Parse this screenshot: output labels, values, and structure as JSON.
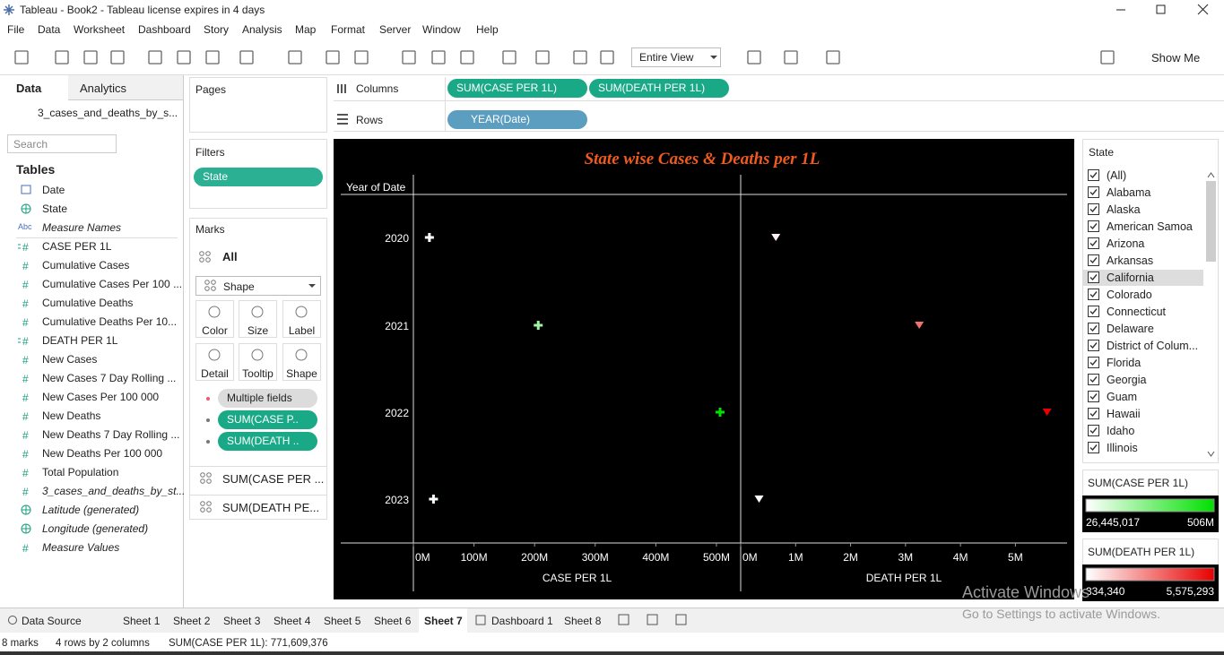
{
  "window": {
    "title": "Tableau - Book2 - Tableau license expires in 4 days"
  },
  "menu": [
    "File",
    "Data",
    "Worksheet",
    "Dashboard",
    "Story",
    "Analysis",
    "Map",
    "Format",
    "Server",
    "Window",
    "Help"
  ],
  "toolbar": {
    "fit": "Entire View",
    "show_me": "Show Me"
  },
  "data_pane": {
    "tabs": [
      "Data",
      "Analytics"
    ],
    "source": "3_cases_and_deaths_by_s...",
    "search": "Search",
    "tables": "Tables",
    "fields": [
      {
        "kind": "date",
        "name": "Date"
      },
      {
        "kind": "geo",
        "name": "State"
      },
      {
        "icon": "Abc",
        "name": "Measure Names",
        "italic": true
      },
      {
        "icon": "#",
        "kind": "calc",
        "name": "CASE PER 1L"
      },
      {
        "icon": "#",
        "name": "Cumulative Cases"
      },
      {
        "icon": "#",
        "name": "Cumulative Cases Per 100 ..."
      },
      {
        "icon": "#",
        "name": "Cumulative Deaths"
      },
      {
        "icon": "#",
        "name": "Cumulative Deaths Per 10..."
      },
      {
        "icon": "#",
        "kind": "calc",
        "name": "DEATH PER 1L"
      },
      {
        "icon": "#",
        "name": "New Cases"
      },
      {
        "icon": "#",
        "name": "New Cases 7 Day Rolling ..."
      },
      {
        "icon": "#",
        "name": "New Cases Per 100 000"
      },
      {
        "icon": "#",
        "name": "New Deaths"
      },
      {
        "icon": "#",
        "name": "New Deaths 7 Day Rolling ..."
      },
      {
        "icon": "#",
        "name": "New Deaths Per 100 000"
      },
      {
        "icon": "#",
        "name": "Total Population"
      },
      {
        "icon": "#",
        "name": "3_cases_and_deaths_by_st...",
        "italic": true
      },
      {
        "kind": "geo",
        "name": "Latitude (generated)",
        "italic": true
      },
      {
        "kind": "geo",
        "name": "Longitude (generated)",
        "italic": true
      },
      {
        "icon": "#",
        "name": "Measure Values",
        "italic": true
      }
    ]
  },
  "pages": {
    "title": "Pages"
  },
  "filters": {
    "title": "Filters",
    "pills": [
      "State"
    ]
  },
  "marks": {
    "title": "Marks",
    "all": "All",
    "mark_type": "Shape",
    "buttons": [
      "Color",
      "Size",
      "Label",
      "Detail",
      "Tooltip",
      "Shape"
    ],
    "pills": [
      "Multiple fields",
      "SUM(CASE P..",
      "SUM(DEATH .."
    ],
    "sections": [
      "SUM(CASE PER ...",
      "SUM(DEATH PE..."
    ]
  },
  "shelves": {
    "columns": {
      "label": "Columns",
      "pills": [
        "SUM(CASE PER 1L)",
        "SUM(DEATH PER 1L)"
      ]
    },
    "rows": {
      "label": "Rows",
      "pills": [
        "YEAR(Date)"
      ]
    }
  },
  "viz": {
    "type": "scatter",
    "title": "State wise Cases & Deaths per 1L",
    "row_header": "Year of Date",
    "categories": [
      "2020",
      "2021",
      "2022",
      "2023"
    ],
    "panes": [
      {
        "axis_title": "CASE PER 1L",
        "shape": "plus",
        "xlim": [
          0,
          540000000
        ],
        "xticks": [
          {
            "value": 0,
            "label": "0M"
          },
          {
            "value": 100000000,
            "label": "100M"
          },
          {
            "value": 200000000,
            "label": "200M"
          },
          {
            "value": 300000000,
            "label": "300M"
          },
          {
            "value": 400000000,
            "label": "400M"
          },
          {
            "value": 500000000,
            "label": "500M"
          }
        ],
        "values": [
          26445017,
          206000000,
          506000000,
          33164359
        ]
      },
      {
        "axis_title": "DEATH PER 1L",
        "shape": "triangle",
        "xlim": [
          0,
          5940000
        ],
        "xticks": [
          {
            "value": 0,
            "label": "0M"
          },
          {
            "value": 1000000,
            "label": "1M"
          },
          {
            "value": 2000000,
            "label": "2M"
          },
          {
            "value": 3000000,
            "label": "3M"
          },
          {
            "value": 4000000,
            "label": "4M"
          },
          {
            "value": 5000000,
            "label": "5M"
          }
        ],
        "values": [
          640000,
          3250000,
          5575293,
          334340
        ]
      }
    ]
  },
  "state_filter": {
    "title": "State",
    "highlighted": 6,
    "items": [
      "(All)",
      "Alabama",
      "Alaska",
      "American Samoa",
      "Arizona",
      "Arkansas",
      "California",
      "Colorado",
      "Connecticut",
      "Delaware",
      "District of Colum...",
      "Florida",
      "Georgia",
      "Guam",
      "Hawaii",
      "Idaho",
      "Illinois"
    ]
  },
  "legends": [
    {
      "title": "SUM(CASE PER 1L)",
      "min": {
        "value": 26445017,
        "label": "26,445,017"
      },
      "max": {
        "value": 506000000,
        "label": "506M"
      },
      "colors": [
        "#ffffff",
        "#00e000"
      ]
    },
    {
      "title": "SUM(DEATH PER 1L)",
      "min": {
        "value": 334340,
        "label": "334,340"
      },
      "max": {
        "value": 5575293,
        "label": "5,575,293"
      },
      "colors": [
        "#ffffff",
        "#e80000"
      ]
    }
  ],
  "tabs": {
    "active": 7,
    "items": [
      "Data Source",
      "Sheet 1",
      "Sheet 2",
      "Sheet 3",
      "Sheet 4",
      "Sheet 5",
      "Sheet 6",
      "Sheet 7",
      "Dashboard 1",
      "Sheet 8"
    ]
  },
  "status": [
    "8 marks",
    "4 rows by 2 columns",
    "SUM(CASE PER 1L): 771,609,376"
  ],
  "watermark": {
    "title": "Activate Windows",
    "text": "Go to Settings to activate Windows."
  }
}
